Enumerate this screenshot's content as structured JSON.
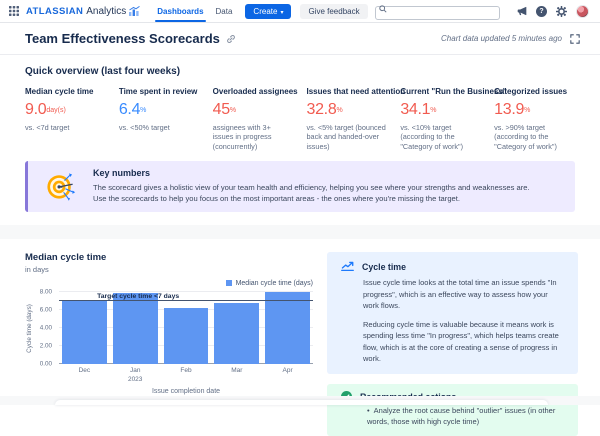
{
  "nav": {
    "brand_name": "ATLASSIAN",
    "brand_product": "Analytics",
    "tabs": [
      {
        "label": "Dashboards",
        "active": true
      },
      {
        "label": "Data",
        "active": false
      }
    ],
    "create_label": "Create",
    "create_chevron": "▾",
    "feedback_label": "Give feedback",
    "search_value": ""
  },
  "titlebar": {
    "title": "Team Effectiveness Scorecards",
    "updated": "Chart data updated 5 minutes ago"
  },
  "overview": {
    "heading": "Quick overview (last four weeks)",
    "scorecards": [
      {
        "title": "Median cycle time",
        "value": "9.0",
        "unit": "day(s)",
        "color": "red",
        "subtext": "vs. <7d target"
      },
      {
        "title": "Time spent in review",
        "value": "6.4",
        "unit": "%",
        "color": "blue",
        "subtext": "vs. <50% target"
      },
      {
        "title": "Overloaded assignees",
        "value": "45",
        "unit": "%",
        "color": "red",
        "subtext": "assignees with 3+ issues in progress (concurrently)"
      },
      {
        "title": "Issues that need attention",
        "value": "32.8",
        "unit": "%",
        "color": "red",
        "subtext": "vs. <5% target (bounced back and handed-over issues)"
      },
      {
        "title": "Current \"Run the Business\"",
        "value": "34.1",
        "unit": "%",
        "color": "red",
        "subtext": "vs. <10% target (according to the \"Category of work\")"
      },
      {
        "title": "Categorized issues",
        "value": "13.9",
        "unit": "%",
        "color": "red",
        "subtext": "vs. >90% target (according to the \"Category of work\")"
      }
    ],
    "banner": {
      "title": "Key numbers",
      "line1": "The scorecard gives a holistic view of your team health and efficiency, helping you see where your strengths and weaknesses are.",
      "line2": "Use the scorecards to help you focus on the most important areas - the ones where you're missing the target."
    }
  },
  "chart_data": {
    "type": "bar",
    "title": "Median cycle time",
    "subtitle": "in days",
    "series_name": "Median cycle time (days)",
    "categories": [
      "Dec",
      "Jan\n2023",
      "Feb",
      "Mar",
      "Apr"
    ],
    "values": [
      7.1,
      7.9,
      6.3,
      6.8,
      8.0
    ],
    "xlabel": "Issue completion date",
    "ylabel": "Cycle time (days)",
    "ylim": [
      0,
      8
    ],
    "yticks": [
      0,
      2,
      4,
      6,
      8
    ],
    "reference_line": {
      "value": 7,
      "label": "Target cycle time <7 days"
    },
    "bar_color": "#5E96F2",
    "grid": true,
    "legend_position": "top-right"
  },
  "info_boxes": {
    "cycle_time": {
      "title": "Cycle time",
      "p1": "Issue cycle time looks at the total time an issue spends \"In progress\", which is an effective way to assess how your work flows.",
      "p2": "Reducing cycle time is valuable because it means work is spending less time \"In progress\", which helps teams create flow, which is at the core of creating a sense of progress in work."
    },
    "recommended": {
      "title": "Recommended actions",
      "items": [
        "Analyze the root cause behind \"outlier\" issues (in other words, those with high cycle time)"
      ]
    }
  },
  "colors": {
    "red": "#F15B50",
    "blue": "#388BFF",
    "accent": "#0C66E4",
    "brand": "#1868DB",
    "bar": "#5E96F2",
    "banner_bg": "#EEEBFF",
    "banner_border": "#8777D9",
    "info_blue_bg": "#E9F2FF",
    "info_green_bg": "#E3FCEF",
    "green": "#22A06B"
  }
}
